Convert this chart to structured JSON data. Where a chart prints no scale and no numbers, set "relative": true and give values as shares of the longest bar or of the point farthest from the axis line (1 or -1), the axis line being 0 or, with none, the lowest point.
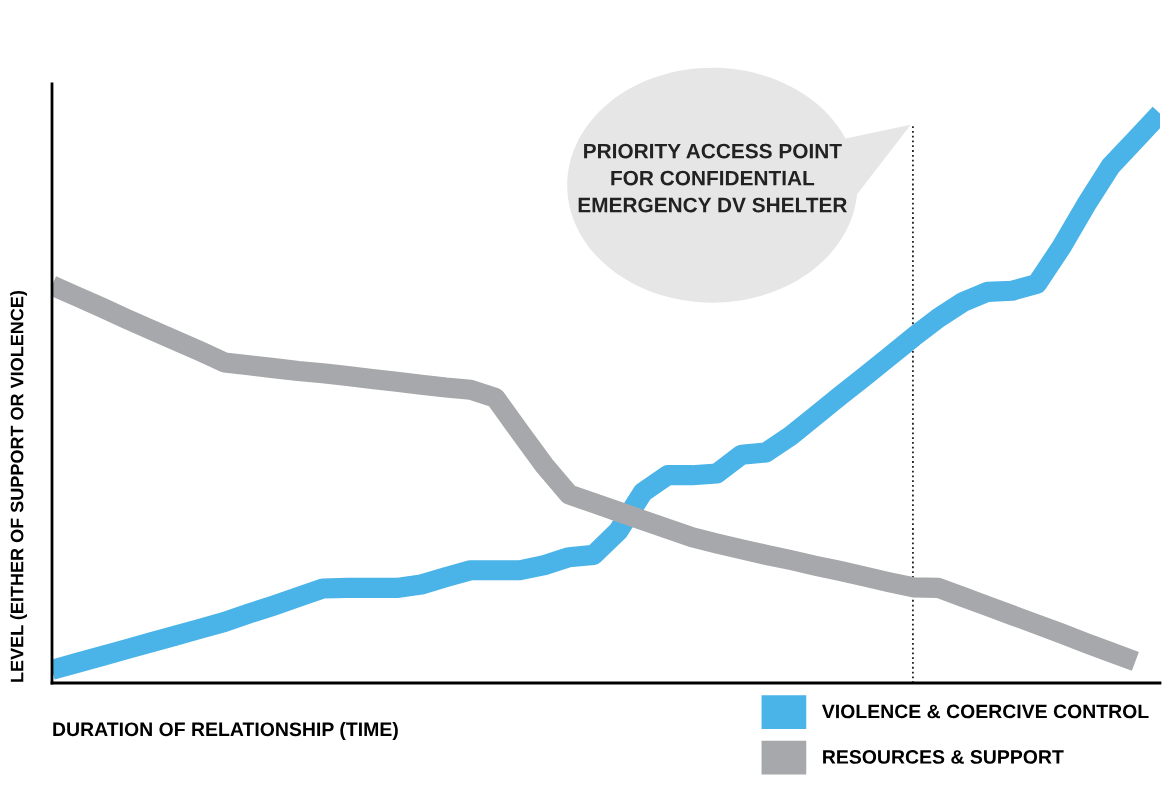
{
  "chart_data": {
    "type": "line",
    "relative": true,
    "xlabel": "DURATION OF RELATIONSHIP (TIME)",
    "ylabel": "LEVEL (EITHER OF SUPPORT OR VIOLENCE)",
    "categories": [
      null,
      null,
      null,
      null,
      null,
      null,
      null,
      null,
      null,
      null,
      null,
      null,
      null,
      null,
      null,
      null,
      null,
      null,
      null,
      null,
      null,
      null,
      null,
      null,
      null,
      null,
      null,
      null,
      null,
      null,
      null,
      null,
      null,
      null,
      null,
      null,
      null,
      null,
      null,
      null,
      null,
      null,
      null,
      null,
      null,
      null
    ],
    "series": [
      {
        "name": "VIOLENCE & COERCIVE CONTROL",
        "color": "#4ab3e8",
        "values": [
          0.023,
          0.035,
          0.047,
          0.059,
          0.071,
          0.083,
          0.095,
          0.107,
          0.122,
          0.136,
          0.151,
          0.166,
          0.167,
          0.167,
          0.167,
          0.173,
          0.186,
          0.198,
          0.198,
          0.198,
          0.207,
          0.221,
          0.225,
          0.267,
          0.335,
          0.365,
          0.365,
          0.368,
          0.401,
          0.405,
          0.434,
          0.469,
          0.504,
          0.538,
          0.573,
          0.608,
          0.641,
          0.669,
          0.687,
          0.689,
          0.701,
          0.766,
          0.84,
          0.908,
          0.954,
          1.0
        ]
      },
      {
        "name": "RESOURCES & SUPPORT",
        "color": "#a7a8ab",
        "values": [
          0.698,
          0.679,
          0.66,
          0.64,
          0.621,
          0.602,
          0.583,
          0.563,
          0.558,
          0.553,
          0.548,
          0.544,
          0.539,
          0.534,
          0.529,
          0.524,
          0.519,
          0.515,
          0.501,
          0.441,
          0.382,
          0.331,
          0.316,
          0.301,
          0.286,
          0.271,
          0.256,
          0.245,
          0.235,
          0.225,
          0.216,
          0.206,
          0.197,
          0.187,
          0.177,
          0.168,
          0.167,
          0.151,
          0.135,
          0.119,
          0.103,
          0.087,
          0.07,
          0.054,
          0.038,
          null
        ]
      }
    ],
    "annotations": [
      "PRIORITY ACCESS POINT\nFOR CONFIDENTIAL\nEMERGENCY DV SHELTER"
    ],
    "legend": "bottom right",
    "tick_labels": false,
    "marker": "none",
    "line_style": "solid"
  }
}
